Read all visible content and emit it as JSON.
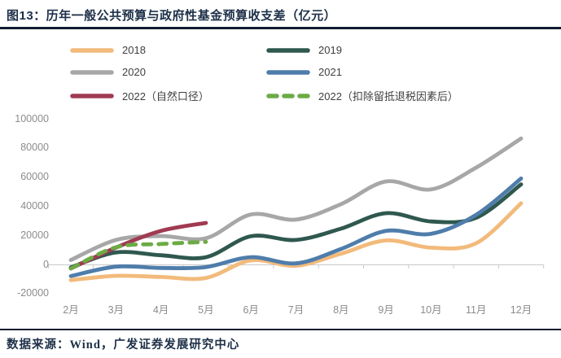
{
  "figure": {
    "title": "图13：历年一般公共预算与政府性基金预算收支差（亿元）",
    "source": "数据来源：Wind，广发证券发展研究中心"
  },
  "chart_data": {
    "type": "line",
    "title": "历年一般公共预算与政府性基金预算收支差（亿元）",
    "unit": "亿元",
    "categories": [
      "2月",
      "3月",
      "4月",
      "5月",
      "6月",
      "7月",
      "8月",
      "9月",
      "10月",
      "11月",
      "12月"
    ],
    "y_ticks": [
      100000,
      80000,
      60000,
      40000,
      20000,
      0,
      -20000
    ],
    "ylim": [
      -20000,
      100000
    ],
    "grid": false,
    "legend_position": "top-two-columns",
    "axis_color": "#c9c9c9",
    "series": [
      {
        "name": "2018",
        "color": "#f2ba7b",
        "style": "solid",
        "values": [
          -10800,
          -7800,
          -8600,
          -9300,
          2800,
          -900,
          7400,
          16500,
          11500,
          14500,
          42000
        ]
      },
      {
        "name": "2019",
        "color": "#2f584f",
        "style": "solid",
        "values": [
          -2000,
          8200,
          6300,
          5000,
          19400,
          16800,
          24600,
          35200,
          29500,
          32000,
          55000
        ]
      },
      {
        "name": "2020",
        "color": "#a7a7a7",
        "style": "solid",
        "values": [
          3000,
          16800,
          19500,
          18000,
          34300,
          30800,
          41400,
          57000,
          51500,
          66500,
          86500
        ]
      },
      {
        "name": "2021",
        "color": "#4f7dab",
        "style": "solid",
        "values": [
          -8000,
          -1500,
          -2400,
          -1800,
          5000,
          700,
          10600,
          23000,
          21000,
          34000,
          59000
        ]
      },
      {
        "name": "2022（自然口径）",
        "color": "#a03a52",
        "style": "solid",
        "values": [
          -2800,
          11500,
          23000,
          28500,
          null,
          null,
          null,
          null,
          null,
          null,
          null
        ]
      },
      {
        "name": "2022（扣除留抵退税因素后）",
        "color": "#6cab45",
        "style": "dashed",
        "values": [
          -2800,
          11800,
          14000,
          15500,
          null,
          null,
          null,
          null,
          null,
          null,
          null
        ]
      }
    ]
  }
}
